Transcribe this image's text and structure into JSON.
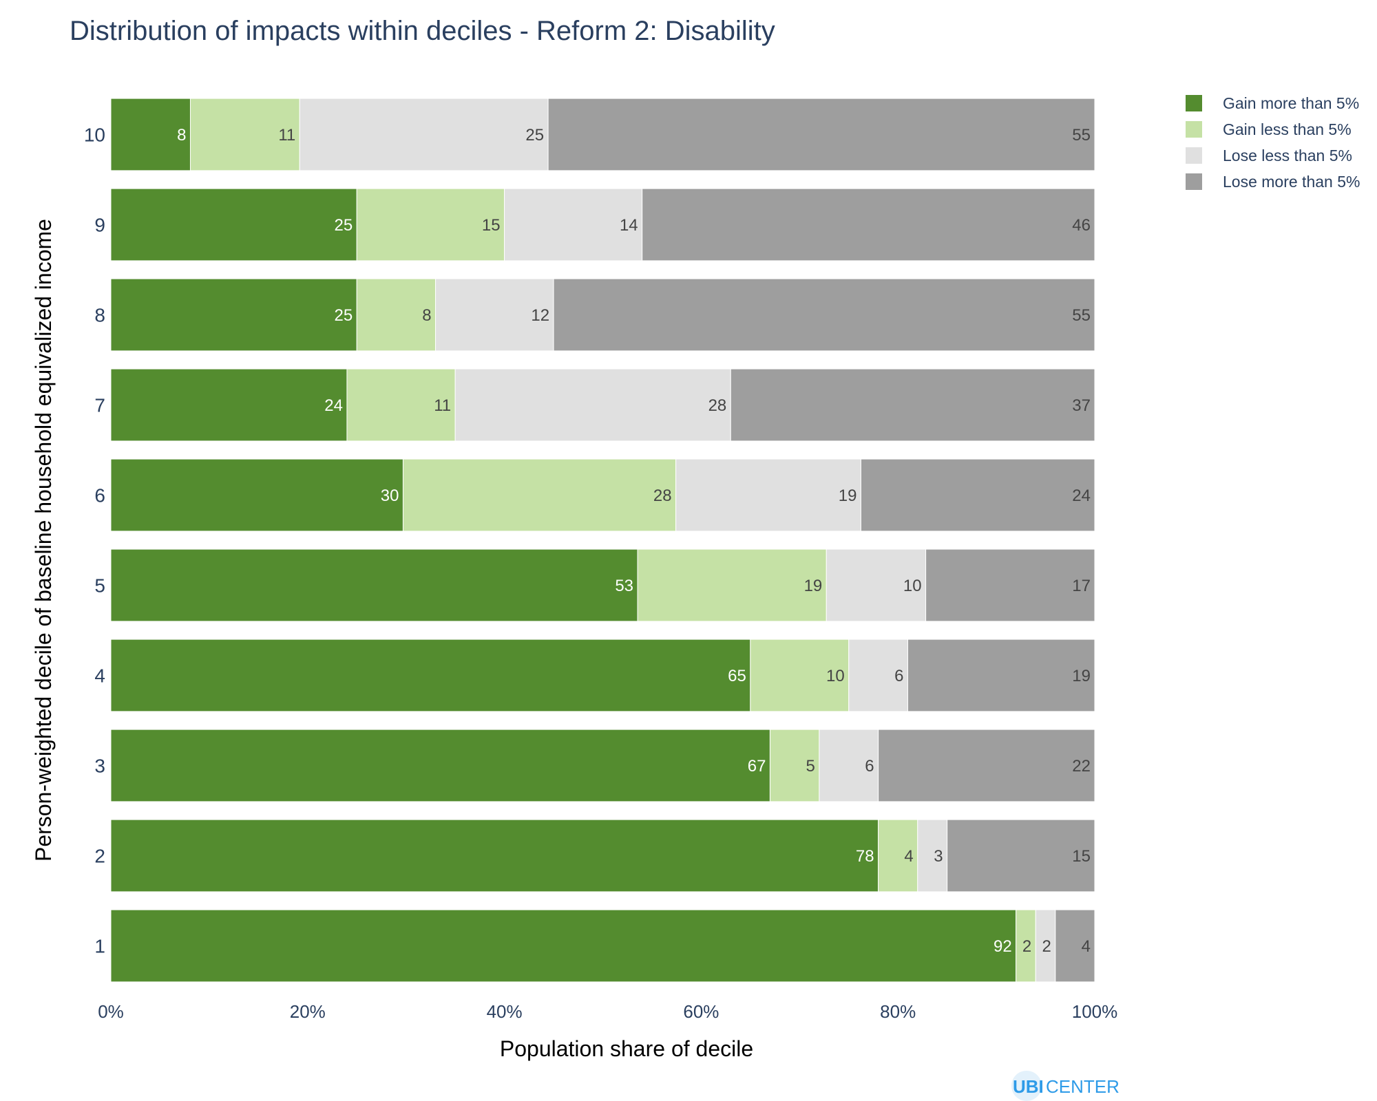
{
  "chart_data": {
    "type": "bar",
    "orientation": "horizontal",
    "stacked": "percent",
    "title": "Distribution of impacts within deciles - Reform 2: Disability",
    "xlabel": "Population share of decile",
    "ylabel": "Person-weighted decile of baseline household equivalized income",
    "categories": [
      "1",
      "2",
      "3",
      "4",
      "5",
      "6",
      "7",
      "8",
      "9",
      "10"
    ],
    "xlim": [
      0,
      100
    ],
    "xticks": [
      "0%",
      "20%",
      "40%",
      "60%",
      "80%",
      "100%"
    ],
    "legend_position": "top-right",
    "grid": false,
    "series": [
      {
        "name": "Gain more than 5%",
        "color": "#548c2f",
        "label_color": "#ffffff",
        "values": [
          92,
          78,
          67,
          65,
          53,
          30,
          24,
          25,
          25,
          8
        ],
        "labels": [
          "92",
          "78",
          "67",
          "65",
          "53",
          "30",
          "24",
          "25",
          "25",
          "8"
        ]
      },
      {
        "name": "Gain less than 5%",
        "color": "#c5e1a5",
        "label_color": "#444444",
        "values": [
          2,
          4,
          5,
          10,
          19,
          28,
          11,
          8,
          15,
          11
        ],
        "labels": [
          "2",
          "4",
          "5",
          "10",
          "19",
          "28",
          "11",
          "8",
          "15",
          "11"
        ]
      },
      {
        "name": "Lose less than 5%",
        "color": "#e0e0e0",
        "label_color": "#444444",
        "values": [
          2,
          3,
          6,
          6,
          10,
          19,
          28,
          12,
          14,
          25
        ],
        "labels": [
          "2",
          "3",
          "6",
          "6",
          "10",
          "19",
          "28",
          "12",
          "14",
          "25"
        ]
      },
      {
        "name": "Lose more than 5%",
        "color": "#9e9e9e",
        "label_color": "#444444",
        "values": [
          4,
          15,
          22,
          19,
          17,
          24,
          37,
          55,
          46,
          55
        ],
        "labels": [
          "4",
          "15",
          "22",
          "19",
          "17",
          "24",
          "37",
          "55",
          "46",
          "55"
        ]
      }
    ]
  },
  "branding": {
    "logo_text_bold": "UBI",
    "logo_text_light": "CENTER",
    "logo_color": "#2e9be8"
  },
  "colors": {
    "title": "#2a3f5f",
    "axis_text": "#2a3f5f",
    "label": "#000000"
  }
}
